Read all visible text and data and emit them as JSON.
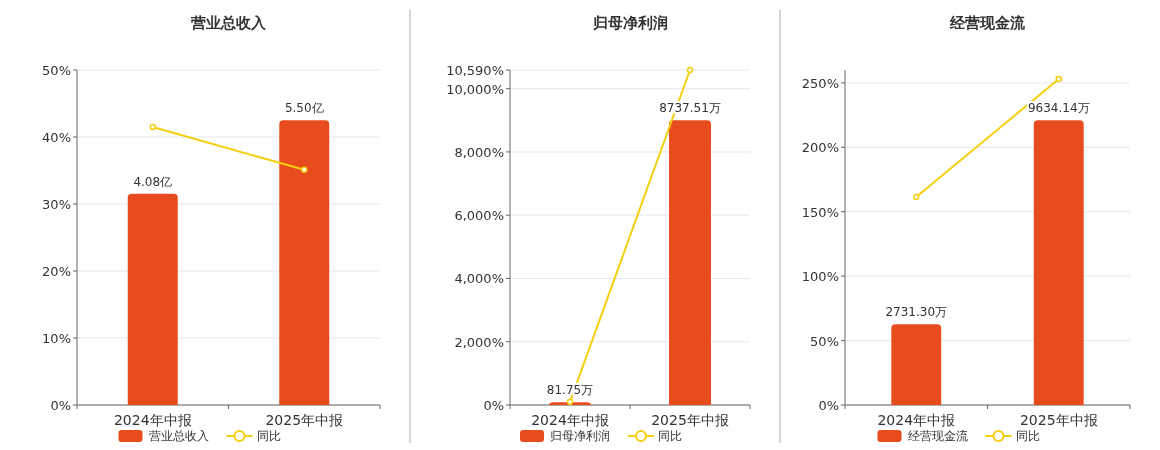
{
  "chart_data": [
    {
      "type": "bar",
      "title": "营业总收入",
      "categories": [
        "2024年中报",
        "2025年中报"
      ],
      "ylim": [
        0,
        50
      ],
      "yticks": [
        {
          "value": 0,
          "label": "0%"
        },
        {
          "value": 10,
          "label": "10%"
        },
        {
          "value": 20,
          "label": "20%"
        },
        {
          "value": 30,
          "label": "30%"
        },
        {
          "value": 40,
          "label": "40%"
        },
        {
          "value": 50,
          "label": "50%"
        }
      ],
      "grid": "y",
      "legend": "bottom",
      "series": [
        {
          "name": "营业总收入",
          "axis": "y2",
          "color": "#e84c1e",
          "values": [
            4.08,
            5.5
          ],
          "value_labels": [
            "4.08亿",
            "5.50亿"
          ]
        },
        {
          "name": "同比",
          "type": "line",
          "color": "#f5cf0f",
          "marker": "circle",
          "values": [
            41.5,
            35.1
          ]
        }
      ]
    },
    {
      "type": "bar",
      "title": "归母净利润",
      "categories": [
        "2024年中报",
        "2025年中报"
      ],
      "ylim": [
        0,
        10590
      ],
      "yticks": [
        {
          "value": 0,
          "label": "0%"
        },
        {
          "value": 2000,
          "label": "2,000%"
        },
        {
          "value": 4000,
          "label": "4,000%"
        },
        {
          "value": 6000,
          "label": "6,000%"
        },
        {
          "value": 8000,
          "label": "8,000%"
        },
        {
          "value": 10000,
          "label": "10,000%"
        },
        {
          "value": 10590,
          "label": "10,590%"
        }
      ],
      "grid": "y",
      "legend": "bottom",
      "series": [
        {
          "name": "归母净利润",
          "axis": "y2",
          "color": "#e84c1e",
          "values": [
            81.75,
            8737.51
          ],
          "value_labels": [
            "81.75万",
            "8737.51万"
          ]
        },
        {
          "name": "同比",
          "type": "line",
          "color": "#f5cf0f",
          "marker": "circle",
          "values": [
            100,
            10590
          ]
        }
      ]
    },
    {
      "type": "bar",
      "title": "经营现金流",
      "categories": [
        "2024年中报",
        "2025年中报"
      ],
      "ylim": [
        0,
        260
      ],
      "yticks": [
        {
          "value": 0,
          "label": "0%"
        },
        {
          "value": 50,
          "label": "50%"
        },
        {
          "value": 100,
          "label": "100%"
        },
        {
          "value": 150,
          "label": "150%"
        },
        {
          "value": 200,
          "label": "200%"
        },
        {
          "value": 250,
          "label": "250%"
        }
      ],
      "grid": "y",
      "legend": "bottom",
      "series": [
        {
          "name": "经营现金流",
          "axis": "y2",
          "color": "#e84c1e",
          "values": [
            2731.3,
            9634.14
          ],
          "value_labels": [
            "2731.30万",
            "9634.14万"
          ]
        },
        {
          "name": "同比",
          "type": "line",
          "color": "#f5cf0f",
          "marker": "circle",
          "values": [
            161.5,
            253
          ]
        }
      ]
    }
  ]
}
